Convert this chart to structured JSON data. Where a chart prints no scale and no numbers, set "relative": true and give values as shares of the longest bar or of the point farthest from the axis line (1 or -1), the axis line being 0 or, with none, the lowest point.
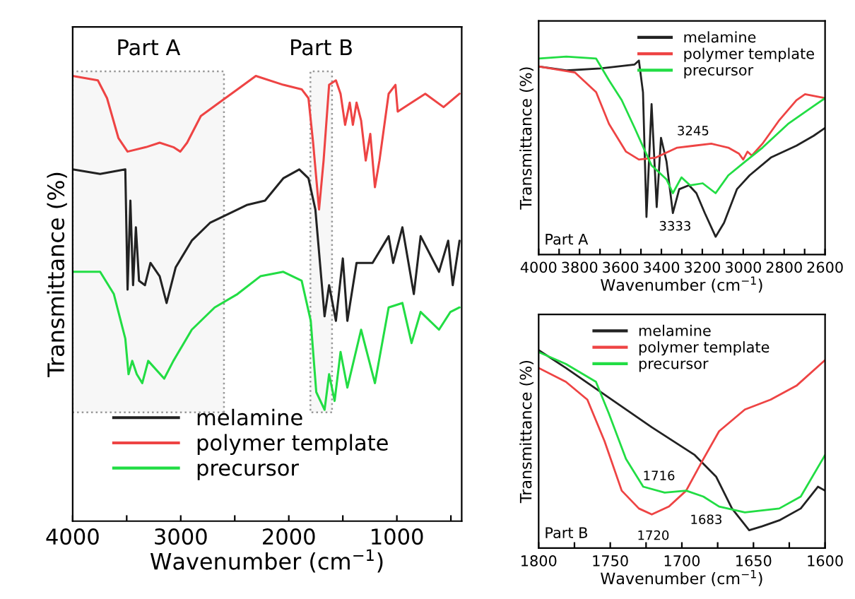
{
  "chart_data": [
    {
      "type": "line",
      "relative": true,
      "xlabel": "Wavenumber (cm$^{−1}$)",
      "ylabel": "Transmittance (%)",
      "tick_labels": "x",
      "legend": "bottom left",
      "xlim": [
        4000,
        400
      ],
      "xticks": [
        4000,
        {
          "value": 3500,
          "label": null
        },
        3000,
        {
          "value": 2500,
          "label": null
        },
        2000,
        {
          "value": 1500,
          "label": null
        },
        1000,
        {
          "value": 500,
          "label": null
        }
      ],
      "bands": [
        {
          "axis": "x",
          "from": 4000,
          "to": 2600,
          "label": "Part A",
          "color": "#999999"
        },
        {
          "axis": "x",
          "from": 1800,
          "to": 1600,
          "label": "Part B",
          "color": "#999999"
        }
      ],
      "series": [
        {
          "name": "melamine",
          "color": "#222222",
          "x": [
            4000,
            3746,
            3513,
            3492,
            3466,
            3441,
            3415,
            3386,
            3331,
            3280,
            3195,
            3131,
            3047,
            2898,
            2729,
            2559,
            2390,
            2220,
            2051,
            1903,
            1818,
            1754,
            1669,
            1627,
            1564,
            1500,
            1458,
            1373,
            1225,
            1076,
            1034,
            949,
            843,
            780,
            610,
            525,
            483,
            420
          ],
          "values": [
            0.79,
            0.78,
            0.79,
            0.52,
            0.72,
            0.53,
            0.66,
            0.54,
            0.53,
            0.58,
            0.55,
            0.49,
            0.57,
            0.63,
            0.67,
            0.69,
            0.71,
            0.72,
            0.77,
            0.79,
            0.77,
            0.7,
            0.46,
            0.53,
            0.45,
            0.59,
            0.45,
            0.58,
            0.58,
            0.64,
            0.58,
            0.66,
            0.51,
            0.64,
            0.56,
            0.63,
            0.53,
            0.63
          ]
        },
        {
          "name": "polymer template",
          "color": "#ee4444",
          "x": [
            4000,
            3767,
            3682,
            3576,
            3492,
            3322,
            3195,
            3068,
            3004,
            2941,
            2814,
            2644,
            2475,
            2305,
            2051,
            1881,
            1818,
            1775,
            1720,
            1678,
            1627,
            1564,
            1521,
            1479,
            1436,
            1407,
            1373,
            1331,
            1288,
            1246,
            1203,
            1161,
            1076,
            1013,
            992,
            864,
            737,
            568,
            420
          ],
          "values": [
            1.0,
            0.99,
            0.95,
            0.86,
            0.83,
            0.84,
            0.85,
            0.84,
            0.83,
            0.85,
            0.91,
            0.94,
            0.97,
            1.0,
            0.98,
            0.97,
            0.95,
            0.85,
            0.7,
            0.81,
            0.98,
            0.99,
            0.96,
            0.89,
            0.94,
            0.89,
            0.94,
            0.9,
            0.81,
            0.87,
            0.75,
            0.81,
            0.96,
            0.98,
            0.92,
            0.94,
            0.96,
            0.93,
            0.96
          ]
        },
        {
          "name": "precursor",
          "color": "#22dd44",
          "x": [
            4000,
            3746,
            3619,
            3513,
            3483,
            3449,
            3407,
            3356,
            3301,
            3153,
            3068,
            2898,
            2686,
            2475,
            2263,
            2051,
            1881,
            1797,
            1746,
            1669,
            1627,
            1576,
            1521,
            1458,
            1331,
            1267,
            1203,
            1076,
            949,
            864,
            780,
            610,
            504,
            420
          ],
          "values": [
            0.56,
            0.56,
            0.51,
            0.41,
            0.33,
            0.36,
            0.33,
            0.31,
            0.36,
            0.32,
            0.36,
            0.43,
            0.48,
            0.51,
            0.55,
            0.56,
            0.54,
            0.45,
            0.29,
            0.25,
            0.33,
            0.27,
            0.38,
            0.3,
            0.43,
            0.37,
            0.31,
            0.48,
            0.49,
            0.4,
            0.47,
            0.43,
            0.47,
            0.48
          ]
        }
      ]
    },
    {
      "type": "line",
      "relative": true,
      "xlabel": "Wavenumber (cm$^{−1}$)",
      "ylabel": "Transmittance (%)",
      "tick_labels": "x",
      "legend": "top right",
      "xlim": [
        4000,
        2600
      ],
      "xticks": [
        4000,
        {
          "value": 3900,
          "label": null
        },
        3800,
        {
          "value": 3700,
          "label": null
        },
        3600,
        {
          "value": 3500,
          "label": null
        },
        3400,
        {
          "value": 3300,
          "label": null
        },
        3200,
        {
          "value": 3100,
          "label": null
        },
        3000,
        {
          "value": 2900,
          "label": null
        },
        2800,
        {
          "value": 2700,
          "label": null
        },
        2600
      ],
      "annotations": [
        "Part A",
        {
          "text": "3245",
          "x": 3245,
          "y": 0.55
        },
        {
          "text": "3333",
          "x": 3333,
          "y": 0.25
        }
      ],
      "series": [
        {
          "name": "melamine",
          "color": "#222222",
          "x": [
            4000,
            3865,
            3698,
            3531,
            3510,
            3490,
            3473,
            3448,
            3423,
            3402,
            3375,
            3344,
            3313,
            3265,
            3229,
            3188,
            3135,
            3094,
            3031,
            2969,
            2865,
            2740,
            2656,
            2600
          ],
          "values": [
            0.95,
            0.93,
            0.94,
            0.96,
            0.98,
            0.82,
            0.19,
            0.76,
            0.24,
            0.59,
            0.47,
            0.21,
            0.33,
            0.35,
            0.31,
            0.21,
            0.09,
            0.16,
            0.33,
            0.4,
            0.49,
            0.55,
            0.6,
            0.64
          ]
        },
        {
          "name": "polymer template",
          "color": "#ee4444",
          "x": [
            4000,
            3823,
            3719,
            3656,
            3573,
            3510,
            3427,
            3323,
            3240,
            3156,
            3073,
            3021,
            3000,
            2979,
            2958,
            2906,
            2823,
            2740,
            2698,
            2600
          ],
          "values": [
            0.95,
            0.92,
            0.82,
            0.66,
            0.52,
            0.48,
            0.49,
            0.54,
            0.55,
            0.56,
            0.54,
            0.51,
            0.48,
            0.52,
            0.5,
            0.56,
            0.68,
            0.78,
            0.81,
            0.79
          ]
        },
        {
          "name": "precursor",
          "color": "#22dd44",
          "x": [
            4000,
            3865,
            3719,
            3656,
            3594,
            3531,
            3479,
            3448,
            3406,
            3375,
            3344,
            3302,
            3260,
            3198,
            3135,
            3073,
            2990,
            2906,
            2781,
            2656,
            2600
          ],
          "values": [
            0.99,
            1.0,
            0.99,
            0.88,
            0.78,
            0.64,
            0.52,
            0.45,
            0.41,
            0.38,
            0.31,
            0.39,
            0.35,
            0.36,
            0.31,
            0.4,
            0.47,
            0.54,
            0.66,
            0.75,
            0.79
          ]
        }
      ]
    },
    {
      "type": "line",
      "relative": true,
      "xlabel": "Wavenumber (cm$^{−1}$)",
      "ylabel": "Transmittance (%)",
      "tick_labels": "x",
      "legend": "top",
      "xlim": [
        1800,
        1600
      ],
      "xticks": [
        1800,
        {
          "value": 1775,
          "label": null
        },
        1750,
        {
          "value": 1725,
          "label": null
        },
        1700,
        {
          "value": 1675,
          "label": null
        },
        1650,
        {
          "value": 1625,
          "label": null
        },
        1600
      ],
      "annotations": [
        "Part B",
        {
          "text": "1716",
          "x": 1716,
          "y": 0.29
        },
        {
          "text": "1720",
          "x": 1720,
          "y": 0.17
        },
        {
          "text": "1683",
          "x": 1683,
          "y": 0.25
        }
      ],
      "series": [
        {
          "name": "melamine",
          "color": "#222222",
          "x": [
            1800,
            1781,
            1751,
            1721,
            1691,
            1676,
            1665,
            1653,
            1644,
            1632,
            1617,
            1605,
            1600
          ],
          "values": [
            1.0,
            0.91,
            0.76,
            0.61,
            0.47,
            0.36,
            0.2,
            0.09,
            0.11,
            0.14,
            0.2,
            0.31,
            0.29
          ]
        },
        {
          "name": "polymer template",
          "color": "#ee4444",
          "x": [
            1800,
            1781,
            1766,
            1754,
            1742,
            1730,
            1721,
            1709,
            1697,
            1685,
            1674,
            1656,
            1638,
            1620,
            1600
          ],
          "values": [
            0.91,
            0.84,
            0.75,
            0.54,
            0.29,
            0.2,
            0.17,
            0.21,
            0.29,
            0.45,
            0.59,
            0.7,
            0.75,
            0.82,
            0.95
          ]
        },
        {
          "name": "precursor",
          "color": "#22dd44",
          "x": [
            1800,
            1781,
            1760,
            1751,
            1739,
            1727,
            1712,
            1697,
            1685,
            1674,
            1656,
            1632,
            1617,
            1600
          ],
          "values": [
            0.99,
            0.93,
            0.84,
            0.68,
            0.45,
            0.31,
            0.28,
            0.29,
            0.26,
            0.21,
            0.18,
            0.2,
            0.26,
            0.47
          ]
        }
      ]
    }
  ]
}
